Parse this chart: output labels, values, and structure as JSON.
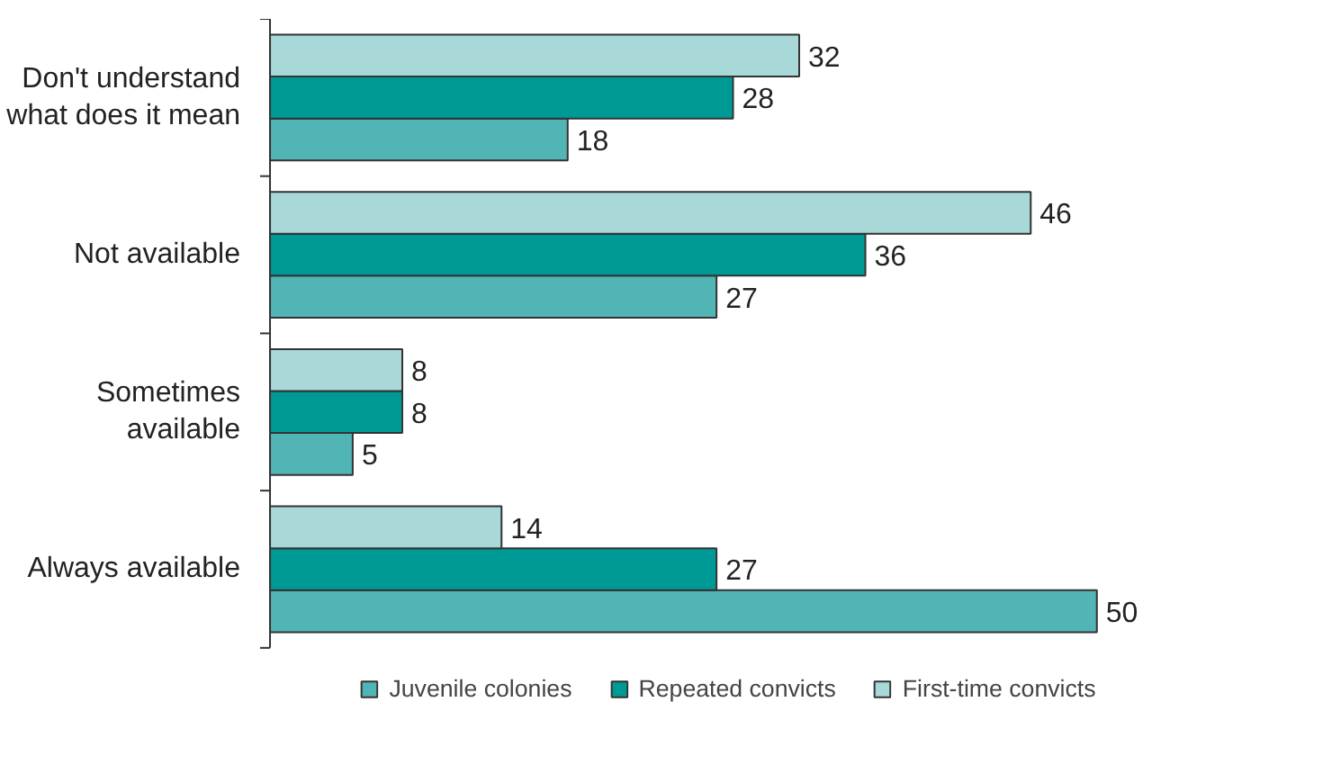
{
  "chart_data": {
    "type": "bar",
    "orientation": "horizontal",
    "categories": [
      "Don't understand\nwhat does it mean",
      "Not available",
      "Sometimes\navailable",
      "Always available"
    ],
    "series": [
      {
        "name": "Juvenile colonies",
        "color": "#52b5b5",
        "values": [
          18,
          27,
          5,
          50
        ]
      },
      {
        "name": "Repeated convicts",
        "color": "#009a96",
        "values": [
          28,
          36,
          8,
          27
        ]
      },
      {
        "name": "First-time convicts",
        "color": "#a8d8d8",
        "values": [
          32,
          46,
          8,
          14
        ]
      }
    ],
    "data_labels": true,
    "legend": "bottom",
    "grid": false
  }
}
